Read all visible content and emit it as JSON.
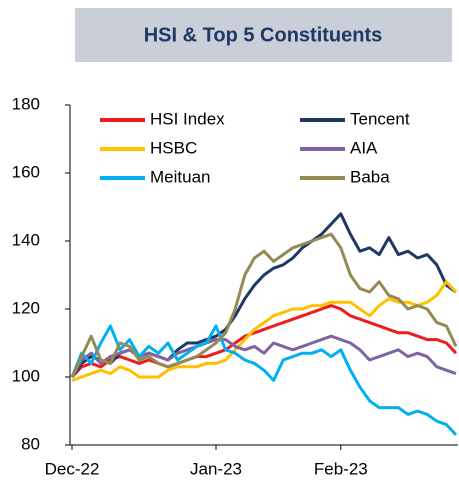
{
  "chart_data": {
    "type": "line",
    "title": "HSI & Top 5 Constituents",
    "categories": [
      "Dec-22",
      null,
      null,
      null,
      null,
      null,
      null,
      null,
      null,
      null,
      null,
      null,
      null,
      null,
      null,
      "Jan-23",
      null,
      null,
      null,
      null,
      null,
      null,
      null,
      null,
      null,
      null,
      null,
      null,
      "Feb-23",
      null,
      null,
      null,
      null,
      null,
      null,
      null,
      null,
      null,
      null,
      null,
      null
    ],
    "ylim": [
      80,
      180
    ],
    "yticks": [
      80,
      100,
      120,
      140,
      160,
      180
    ],
    "grid": false,
    "series": [
      {
        "name": "HSI Index",
        "color": "#ee1c1c",
        "values": [
          100,
          103,
          104,
          103,
          105,
          106,
          105,
          104,
          105,
          104,
          103,
          104,
          105,
          106,
          106,
          107,
          108,
          110,
          112,
          113,
          114,
          115,
          116,
          117,
          118,
          119,
          120,
          121,
          120,
          118,
          117,
          116,
          115,
          114,
          113,
          113,
          112,
          111,
          111,
          110,
          107
        ]
      },
      {
        "name": "Tencent",
        "color": "#1f3864",
        "values": [
          100,
          104,
          106,
          105,
          104,
          107,
          108,
          106,
          107,
          106,
          105,
          108,
          110,
          110,
          111,
          112,
          114,
          118,
          123,
          127,
          130,
          132,
          133,
          135,
          138,
          140,
          142,
          145,
          148,
          142,
          137,
          138,
          136,
          141,
          136,
          137,
          135,
          136,
          133,
          127,
          125
        ]
      },
      {
        "name": "HSBC",
        "color": "#ffc000",
        "values": [
          99,
          100,
          101,
          102,
          101,
          103,
          102,
          100,
          100,
          100,
          102,
          103,
          103,
          103,
          104,
          104,
          105,
          108,
          111,
          114,
          116,
          118,
          119,
          120,
          120,
          121,
          121,
          122,
          122,
          122,
          120,
          118,
          121,
          123,
          122,
          122,
          121,
          122,
          124,
          128,
          125
        ]
      },
      {
        "name": "AIA",
        "color": "#8064a2",
        "values": [
          100,
          105,
          107,
          104,
          106,
          107,
          108,
          106,
          107,
          106,
          105,
          107,
          108,
          109,
          110,
          111,
          111,
          109,
          108,
          109,
          107,
          110,
          109,
          108,
          109,
          110,
          111,
          112,
          111,
          110,
          108,
          105,
          106,
          107,
          108,
          106,
          107,
          106,
          103,
          102,
          101
        ]
      },
      {
        "name": "Meituan",
        "color": "#00b0f0",
        "values": [
          100,
          107,
          104,
          110,
          115,
          108,
          111,
          106,
          109,
          107,
          110,
          105,
          107,
          109,
          110,
          115,
          108,
          107,
          105,
          104,
          102,
          99,
          105,
          106,
          107,
          107,
          108,
          106,
          108,
          102,
          97,
          93,
          91,
          91,
          91,
          89,
          90,
          89,
          87,
          86,
          83
        ]
      },
      {
        "name": "Baba",
        "color": "#948a54",
        "values": [
          100,
          106,
          112,
          105,
          104,
          110,
          109,
          105,
          106,
          104,
          103,
          104,
          105,
          106,
          108,
          110,
          113,
          120,
          130,
          135,
          137,
          134,
          136,
          138,
          139,
          140,
          141,
          142,
          138,
          130,
          126,
          125,
          128,
          124,
          123,
          120,
          121,
          120,
          116,
          115,
          109
        ]
      }
    ]
  }
}
